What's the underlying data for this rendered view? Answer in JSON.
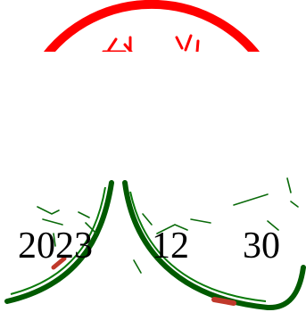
{
  "stamp": {
    "type": "seal-impression",
    "legible_text": "",
    "ring_color": "#ff0000",
    "ink_color": "#006400",
    "smudge_color": "#c0392b"
  },
  "date": {
    "year": "2023",
    "month": "12",
    "day": "30",
    "color": "#000000"
  }
}
